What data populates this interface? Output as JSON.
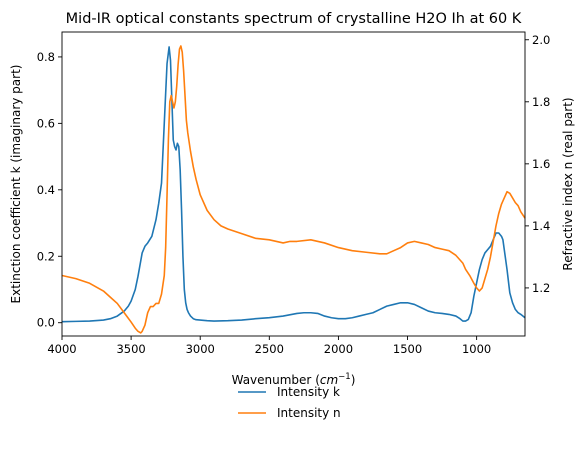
{
  "chart_data": {
    "type": "line",
    "title": "Mid-IR optical constants spectrum of crystalline H2O Ih at 60 K",
    "xlabel": "Wavenumber",
    "xlabel_unit_base": "cm",
    "xlabel_unit_exp": "−1",
    "ylabel_left": "Extinction coefficient k (imaginary part)",
    "ylabel_right": "Refractive index n (real part)",
    "xlim": [
      4000,
      650
    ],
    "x_inverted": true,
    "ylim_left": [
      -0.04,
      0.875
    ],
    "ylim_right": [
      1.045,
      2.025
    ],
    "x_ticks": [
      4000,
      3500,
      3000,
      2500,
      2000,
      1500,
      1000
    ],
    "y_ticks_left": [
      0.0,
      0.2,
      0.4,
      0.6,
      0.8
    ],
    "y_ticks_right": [
      1.2,
      1.4,
      1.6,
      1.8,
      2.0
    ],
    "legend_position": "below",
    "grid": false,
    "series": [
      {
        "name": "Intensity k",
        "axis": "left",
        "color": "#1f77b4",
        "x": [
          4000,
          3900,
          3800,
          3700,
          3650,
          3600,
          3550,
          3520,
          3500,
          3470,
          3450,
          3420,
          3400,
          3380,
          3350,
          3320,
          3300,
          3280,
          3260,
          3240,
          3225,
          3215,
          3205,
          3195,
          3185,
          3175,
          3165,
          3155,
          3145,
          3135,
          3125,
          3115,
          3105,
          3095,
          3085,
          3070,
          3050,
          3030,
          3000,
          2950,
          2900,
          2800,
          2700,
          2600,
          2500,
          2400,
          2300,
          2250,
          2200,
          2150,
          2100,
          2050,
          2000,
          1950,
          1900,
          1850,
          1800,
          1750,
          1700,
          1650,
          1600,
          1550,
          1500,
          1450,
          1400,
          1350,
          1300,
          1250,
          1200,
          1150,
          1120,
          1100,
          1080,
          1060,
          1040,
          1020,
          1000,
          980,
          960,
          940,
          920,
          900,
          880,
          860,
          840,
          820,
          810,
          800,
          780,
          760,
          740,
          720,
          700,
          680,
          650
        ],
        "values": [
          0.003,
          0.004,
          0.005,
          0.008,
          0.012,
          0.02,
          0.035,
          0.05,
          0.065,
          0.1,
          0.14,
          0.21,
          0.23,
          0.24,
          0.26,
          0.31,
          0.36,
          0.42,
          0.6,
          0.78,
          0.83,
          0.79,
          0.67,
          0.55,
          0.53,
          0.52,
          0.54,
          0.53,
          0.46,
          0.34,
          0.2,
          0.1,
          0.06,
          0.04,
          0.03,
          0.02,
          0.012,
          0.009,
          0.008,
          0.006,
          0.005,
          0.006,
          0.008,
          0.012,
          0.015,
          0.02,
          0.028,
          0.03,
          0.03,
          0.028,
          0.02,
          0.015,
          0.012,
          0.012,
          0.015,
          0.02,
          0.025,
          0.03,
          0.04,
          0.05,
          0.055,
          0.06,
          0.06,
          0.055,
          0.045,
          0.035,
          0.03,
          0.028,
          0.025,
          0.02,
          0.012,
          0.005,
          0.005,
          0.01,
          0.03,
          0.08,
          0.12,
          0.16,
          0.19,
          0.21,
          0.22,
          0.23,
          0.25,
          0.27,
          0.27,
          0.26,
          0.25,
          0.22,
          0.16,
          0.09,
          0.06,
          0.04,
          0.03,
          0.025,
          0.015
        ]
      },
      {
        "name": "Intensity n",
        "axis": "right",
        "color": "#ff7f0e",
        "x": [
          4000,
          3900,
          3800,
          3700,
          3650,
          3600,
          3550,
          3500,
          3470,
          3450,
          3430,
          3420,
          3400,
          3380,
          3360,
          3340,
          3320,
          3300,
          3280,
          3260,
          3250,
          3240,
          3230,
          3220,
          3210,
          3200,
          3190,
          3180,
          3170,
          3160,
          3150,
          3140,
          3130,
          3120,
          3110,
          3100,
          3090,
          3070,
          3050,
          3030,
          3000,
          2950,
          2900,
          2850,
          2800,
          2700,
          2600,
          2500,
          2400,
          2350,
          2300,
          2200,
          2100,
          2000,
          1900,
          1800,
          1700,
          1650,
          1600,
          1550,
          1500,
          1450,
          1400,
          1350,
          1300,
          1250,
          1200,
          1150,
          1100,
          1080,
          1050,
          1020,
          1000,
          980,
          960,
          940,
          920,
          900,
          880,
          860,
          840,
          820,
          800,
          780,
          760,
          740,
          720,
          700,
          680,
          650
        ],
        "values": [
          1.24,
          1.23,
          1.215,
          1.19,
          1.17,
          1.15,
          1.12,
          1.09,
          1.07,
          1.06,
          1.055,
          1.06,
          1.08,
          1.12,
          1.14,
          1.14,
          1.15,
          1.15,
          1.18,
          1.24,
          1.33,
          1.5,
          1.68,
          1.8,
          1.82,
          1.8,
          1.78,
          1.8,
          1.85,
          1.92,
          1.97,
          1.98,
          1.96,
          1.9,
          1.82,
          1.74,
          1.7,
          1.64,
          1.59,
          1.55,
          1.5,
          1.45,
          1.42,
          1.4,
          1.39,
          1.375,
          1.36,
          1.355,
          1.345,
          1.35,
          1.35,
          1.355,
          1.345,
          1.33,
          1.32,
          1.315,
          1.31,
          1.31,
          1.32,
          1.33,
          1.345,
          1.35,
          1.345,
          1.34,
          1.33,
          1.325,
          1.32,
          1.305,
          1.28,
          1.26,
          1.24,
          1.215,
          1.2,
          1.19,
          1.2,
          1.23,
          1.26,
          1.3,
          1.35,
          1.4,
          1.44,
          1.47,
          1.49,
          1.51,
          1.505,
          1.49,
          1.475,
          1.465,
          1.445,
          1.425
        ]
      }
    ]
  }
}
